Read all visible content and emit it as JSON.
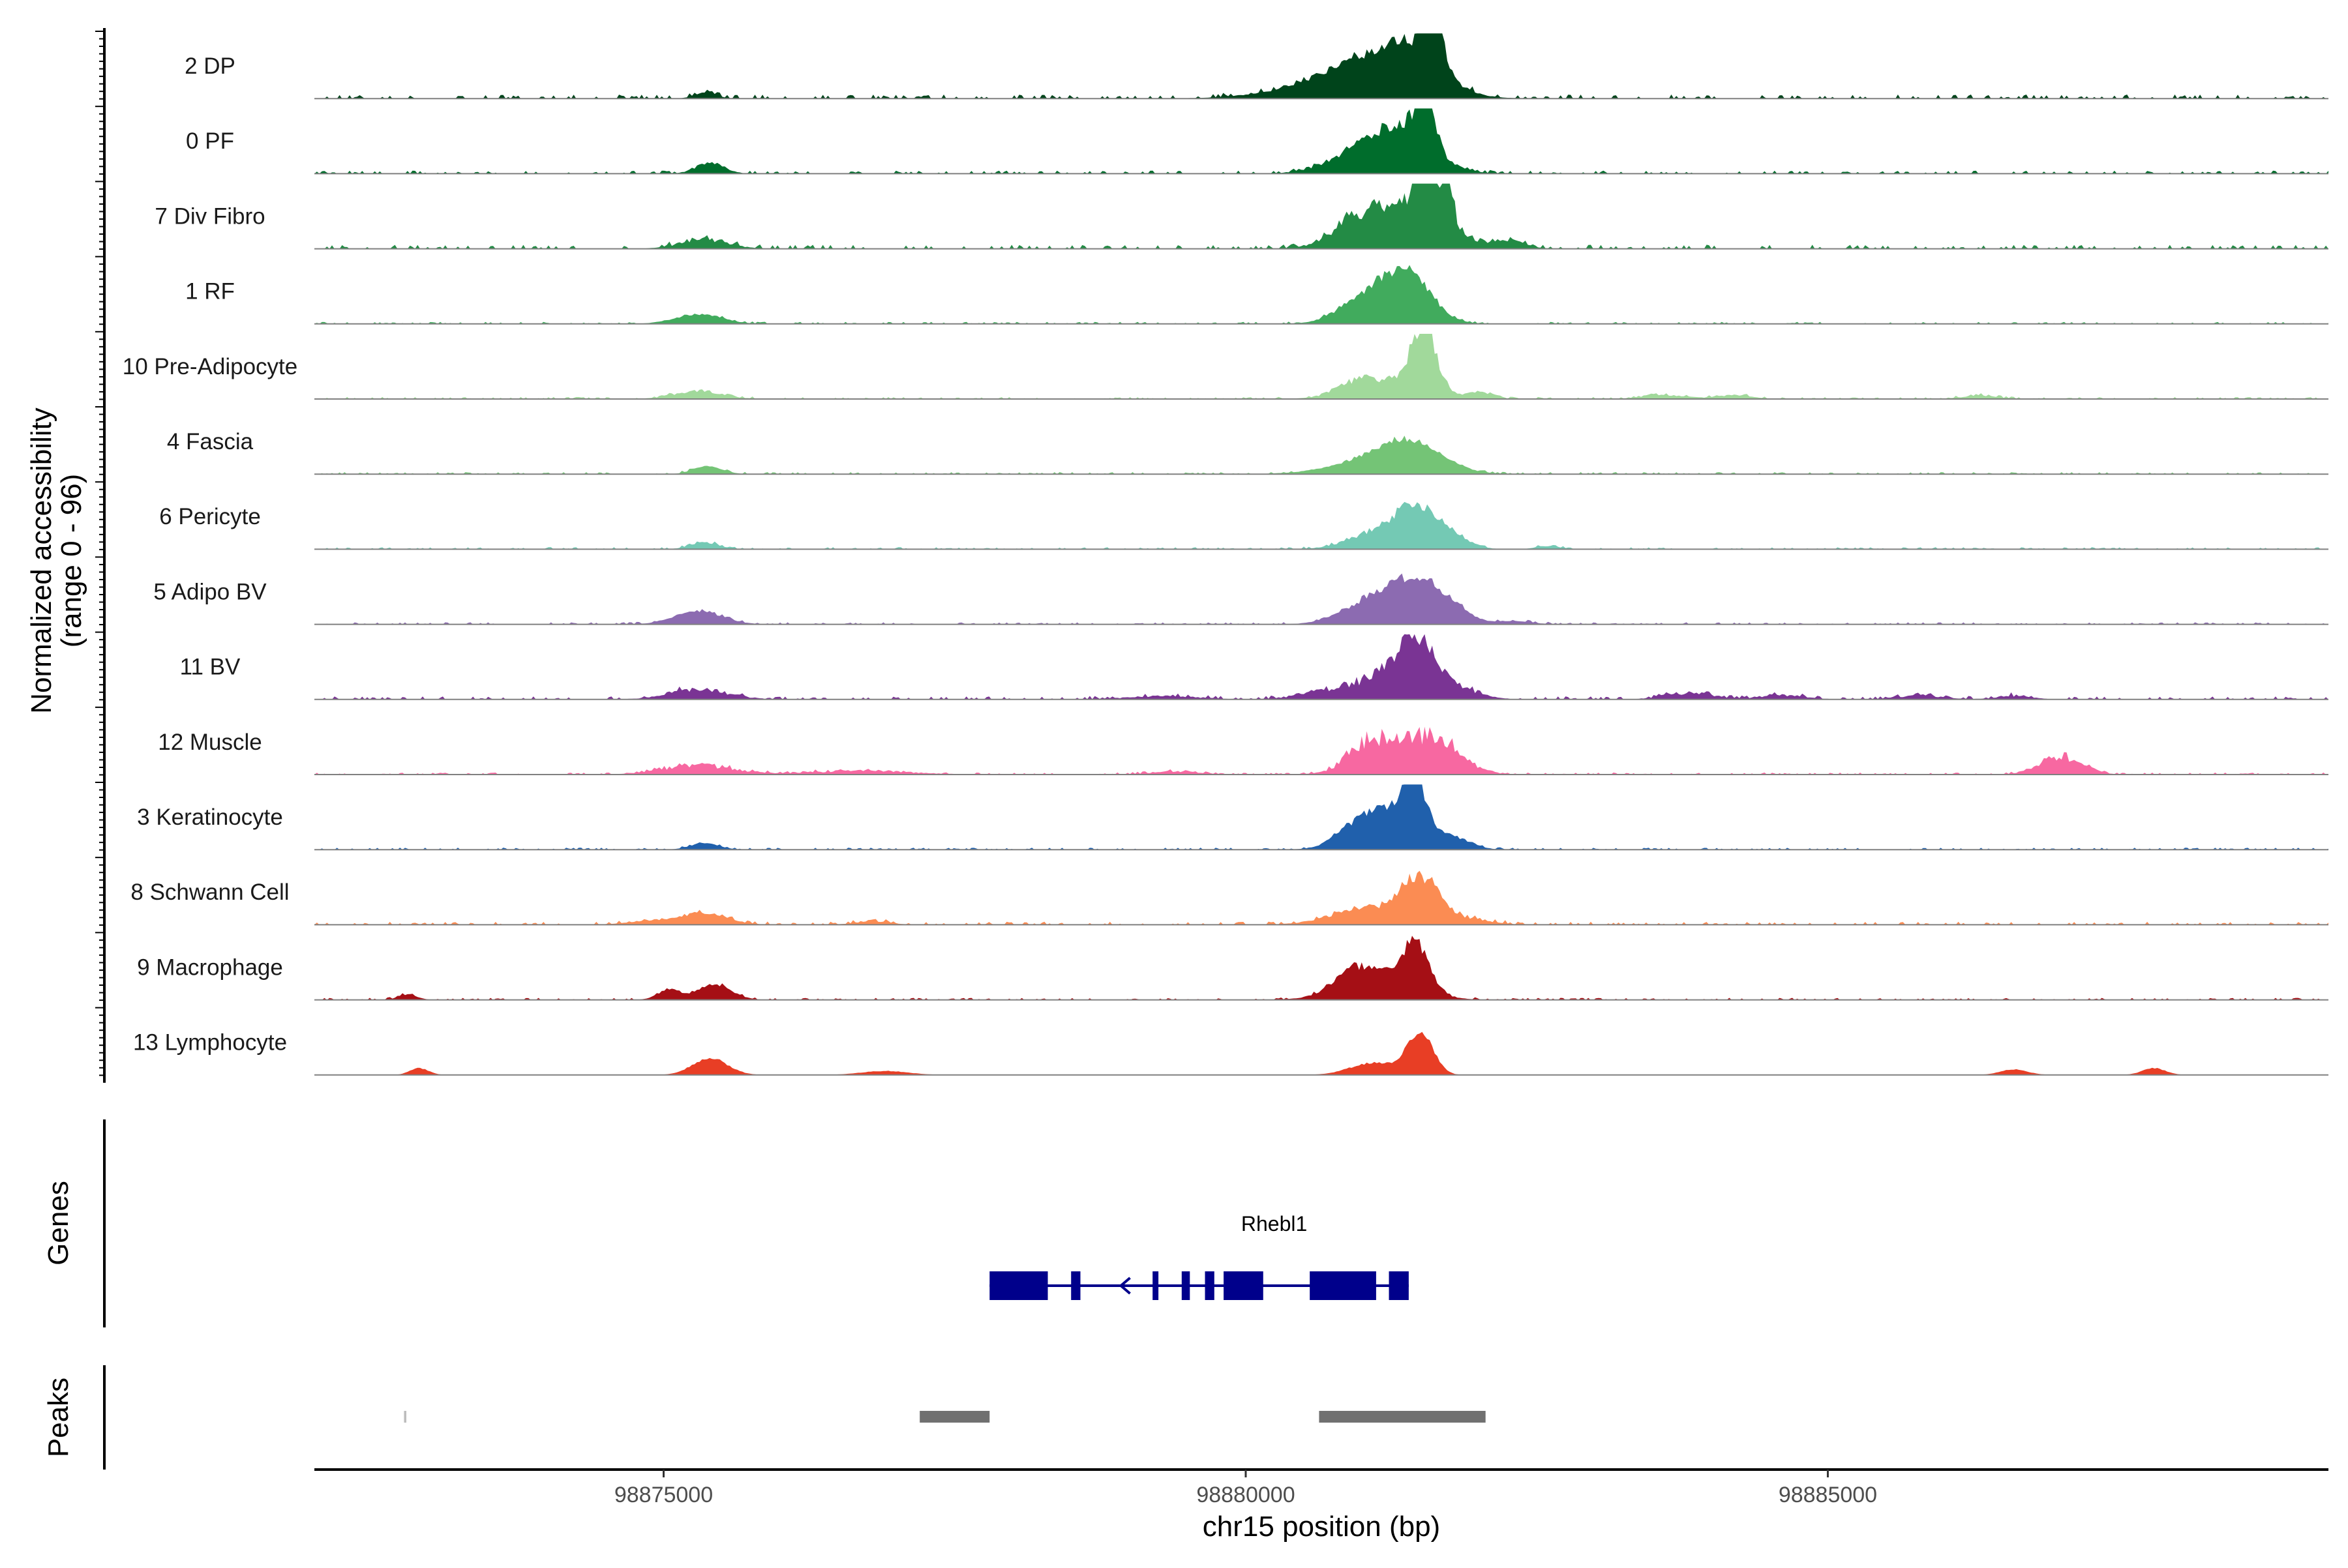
{
  "chart_data": {
    "type": "area",
    "title": "",
    "ylabel_line1": "Normalized accessibility",
    "ylabel_line2": "(range 0 - 96)",
    "xlabel": "chr15 position (bp)",
    "xlim": [
      98872000,
      98889300
    ],
    "ylim": [
      0,
      96
    ],
    "x_ticks": [
      98875000,
      98880000,
      98885000
    ],
    "x_tick_labels": [
      "98875000",
      "98880000",
      "98885000"
    ],
    "series": [
      {
        "name": "2 DP",
        "color": "#00441b",
        "peaks": [
          [
            98875360,
            90,
            9
          ],
          [
            98881430,
            250,
            40
          ],
          [
            98881600,
            80,
            95
          ],
          [
            98881130,
            400,
            40
          ],
          [
            98880800,
            500,
            18
          ]
        ],
        "baseline": 4,
        "noise": 0.4,
        "seed": 11
      },
      {
        "name": "0 PF",
        "color": "#006d2c",
        "peaks": [
          [
            98875400,
            120,
            16
          ],
          [
            98881380,
            250,
            58
          ],
          [
            98881540,
            70,
            96
          ],
          [
            98881000,
            280,
            30
          ]
        ],
        "baseline": 3,
        "noise": 0.5,
        "seed": 22
      },
      {
        "name": "7 Div Fibro",
        "color": "#238b45",
        "peaks": [
          [
            98875350,
            200,
            14
          ],
          [
            98881300,
            300,
            60
          ],
          [
            98881500,
            60,
            95
          ],
          [
            98881700,
            80,
            75
          ],
          [
            98880900,
            200,
            22
          ],
          [
            98882300,
            120,
            10
          ],
          [
            98882000,
            200,
            8
          ]
        ],
        "baseline": 4,
        "noise": 0.8,
        "seed": 33
      },
      {
        "name": "1 RF",
        "color": "#41ab5d",
        "peaks": [
          [
            98875300,
            200,
            14
          ],
          [
            98881400,
            200,
            60
          ],
          [
            98881150,
            250,
            30
          ],
          [
            98880950,
            200,
            14
          ]
        ],
        "baseline": 2,
        "noise": 0.4,
        "seed": 44
      },
      {
        "name": "10 Pre-Adipocyte",
        "color": "#a1d99b",
        "peaks": [
          [
            98875300,
            200,
            12
          ],
          [
            98881530,
            110,
            92
          ],
          [
            98881200,
            300,
            25
          ],
          [
            98880950,
            150,
            12
          ],
          [
            98882000,
            100,
            10
          ],
          [
            98883600,
            180,
            6
          ],
          [
            98884200,
            150,
            6
          ],
          [
            98886300,
            150,
            5
          ]
        ],
        "baseline": 2,
        "noise": 0.6,
        "seed": 55
      },
      {
        "name": "4 Fascia",
        "color": "#74c476",
        "peaks": [
          [
            98875380,
            120,
            12
          ],
          [
            98881400,
            280,
            45
          ],
          [
            98881000,
            350,
            12
          ]
        ],
        "baseline": 2,
        "noise": 0.3,
        "seed": 66
      },
      {
        "name": "6 Pericyte",
        "color": "#74c9b4",
        "peaks": [
          [
            98875350,
            120,
            10
          ],
          [
            98881480,
            180,
            55
          ],
          [
            98881150,
            250,
            25
          ],
          [
            98881800,
            150,
            12
          ],
          [
            98882600,
            100,
            5
          ]
        ],
        "baseline": 2,
        "noise": 0.5,
        "seed": 77
      },
      {
        "name": "5 Adipo BV",
        "color": "#8c6bb1",
        "peaks": [
          [
            98875300,
            200,
            20
          ],
          [
            98881500,
            220,
            58
          ],
          [
            98881100,
            250,
            35
          ],
          [
            98881800,
            150,
            10
          ],
          [
            98882300,
            150,
            5
          ]
        ],
        "baseline": 2,
        "noise": 0.4,
        "seed": 88
      },
      {
        "name": "11 BV",
        "color": "#7a3494",
        "peaks": [
          [
            98875300,
            250,
            15
          ],
          [
            98881470,
            130,
            85
          ],
          [
            98881200,
            300,
            35
          ],
          [
            98881800,
            200,
            14
          ],
          [
            98880600,
            200,
            8
          ],
          [
            98879300,
            300,
            5
          ],
          [
            98883800,
            200,
            10
          ],
          [
            98884600,
            200,
            6
          ],
          [
            98885800,
            200,
            6
          ],
          [
            98886600,
            150,
            5
          ]
        ],
        "baseline": 3,
        "noise": 1.0,
        "seed": 99
      },
      {
        "name": "12 Muscle",
        "color": "#f768a1",
        "peaks": [
          [
            98875300,
            300,
            14
          ],
          [
            98881400,
            300,
            58
          ],
          [
            98881000,
            150,
            25
          ],
          [
            98881750,
            150,
            18
          ],
          [
            98887000,
            180,
            28
          ],
          [
            98876700,
            400,
            6
          ],
          [
            98879400,
            200,
            5
          ]
        ],
        "baseline": 2,
        "noise": 0.9,
        "seed": 111
      },
      {
        "name": "3 Keratinocyte",
        "color": "#2060ac",
        "peaks": [
          [
            98881300,
            280,
            60
          ],
          [
            98881450,
            80,
            70
          ],
          [
            98880950,
            180,
            18
          ],
          [
            98875350,
            120,
            10
          ],
          [
            98881850,
            120,
            8
          ]
        ],
        "baseline": 2,
        "noise": 0.4,
        "seed": 122
      },
      {
        "name": "8 Schwann Cell",
        "color": "#fb8c53",
        "peaks": [
          [
            98875350,
            200,
            16
          ],
          [
            98881500,
            160,
            65
          ],
          [
            98881050,
            300,
            24
          ],
          [
            98881900,
            200,
            8
          ],
          [
            98874900,
            200,
            6
          ],
          [
            98876800,
            150,
            5
          ]
        ],
        "baseline": 3,
        "noise": 0.5,
        "seed": 133
      },
      {
        "name": "9 Macrophage",
        "color": "#a50f15",
        "peaks": [
          [
            98875450,
            140,
            22
          ],
          [
            98881460,
            110,
            65
          ],
          [
            98881150,
            300,
            38
          ],
          [
            98880900,
            150,
            20
          ],
          [
            98875050,
            100,
            15
          ],
          [
            98872800,
            80,
            8
          ]
        ],
        "baseline": 2,
        "noise": 0.4,
        "seed": 144
      },
      {
        "name": "13 Lymphocyte",
        "color": "#e83e25",
        "peaks": [
          [
            98875400,
            150,
            25
          ],
          [
            98881500,
            110,
            62
          ],
          [
            98881100,
            200,
            18
          ],
          [
            98887800,
            100,
            10
          ],
          [
            98886600,
            120,
            8
          ],
          [
            98872900,
            80,
            10
          ],
          [
            98876900,
            200,
            6
          ]
        ],
        "baseline": 0,
        "noise": 0.3,
        "seed": 155
      }
    ],
    "genes_label": "Genes",
    "gene": {
      "name": "Rhebl1",
      "strand": "-",
      "start": 98877800,
      "end": 98881400,
      "exons": [
        [
          98877800,
          98878300
        ],
        [
          98878500,
          98878580
        ],
        [
          98879200,
          98879250
        ],
        [
          98879450,
          98879520
        ],
        [
          98879650,
          98879730
        ],
        [
          98879810,
          98880150
        ],
        [
          98880550,
          98881120
        ],
        [
          98881230,
          98881400
        ]
      ]
    },
    "peaks_label": "Peaks",
    "peak_regions": [
      [
        98872770,
        98872790
      ],
      [
        98877200,
        98877800
      ],
      [
        98880630,
        98882060
      ]
    ]
  }
}
